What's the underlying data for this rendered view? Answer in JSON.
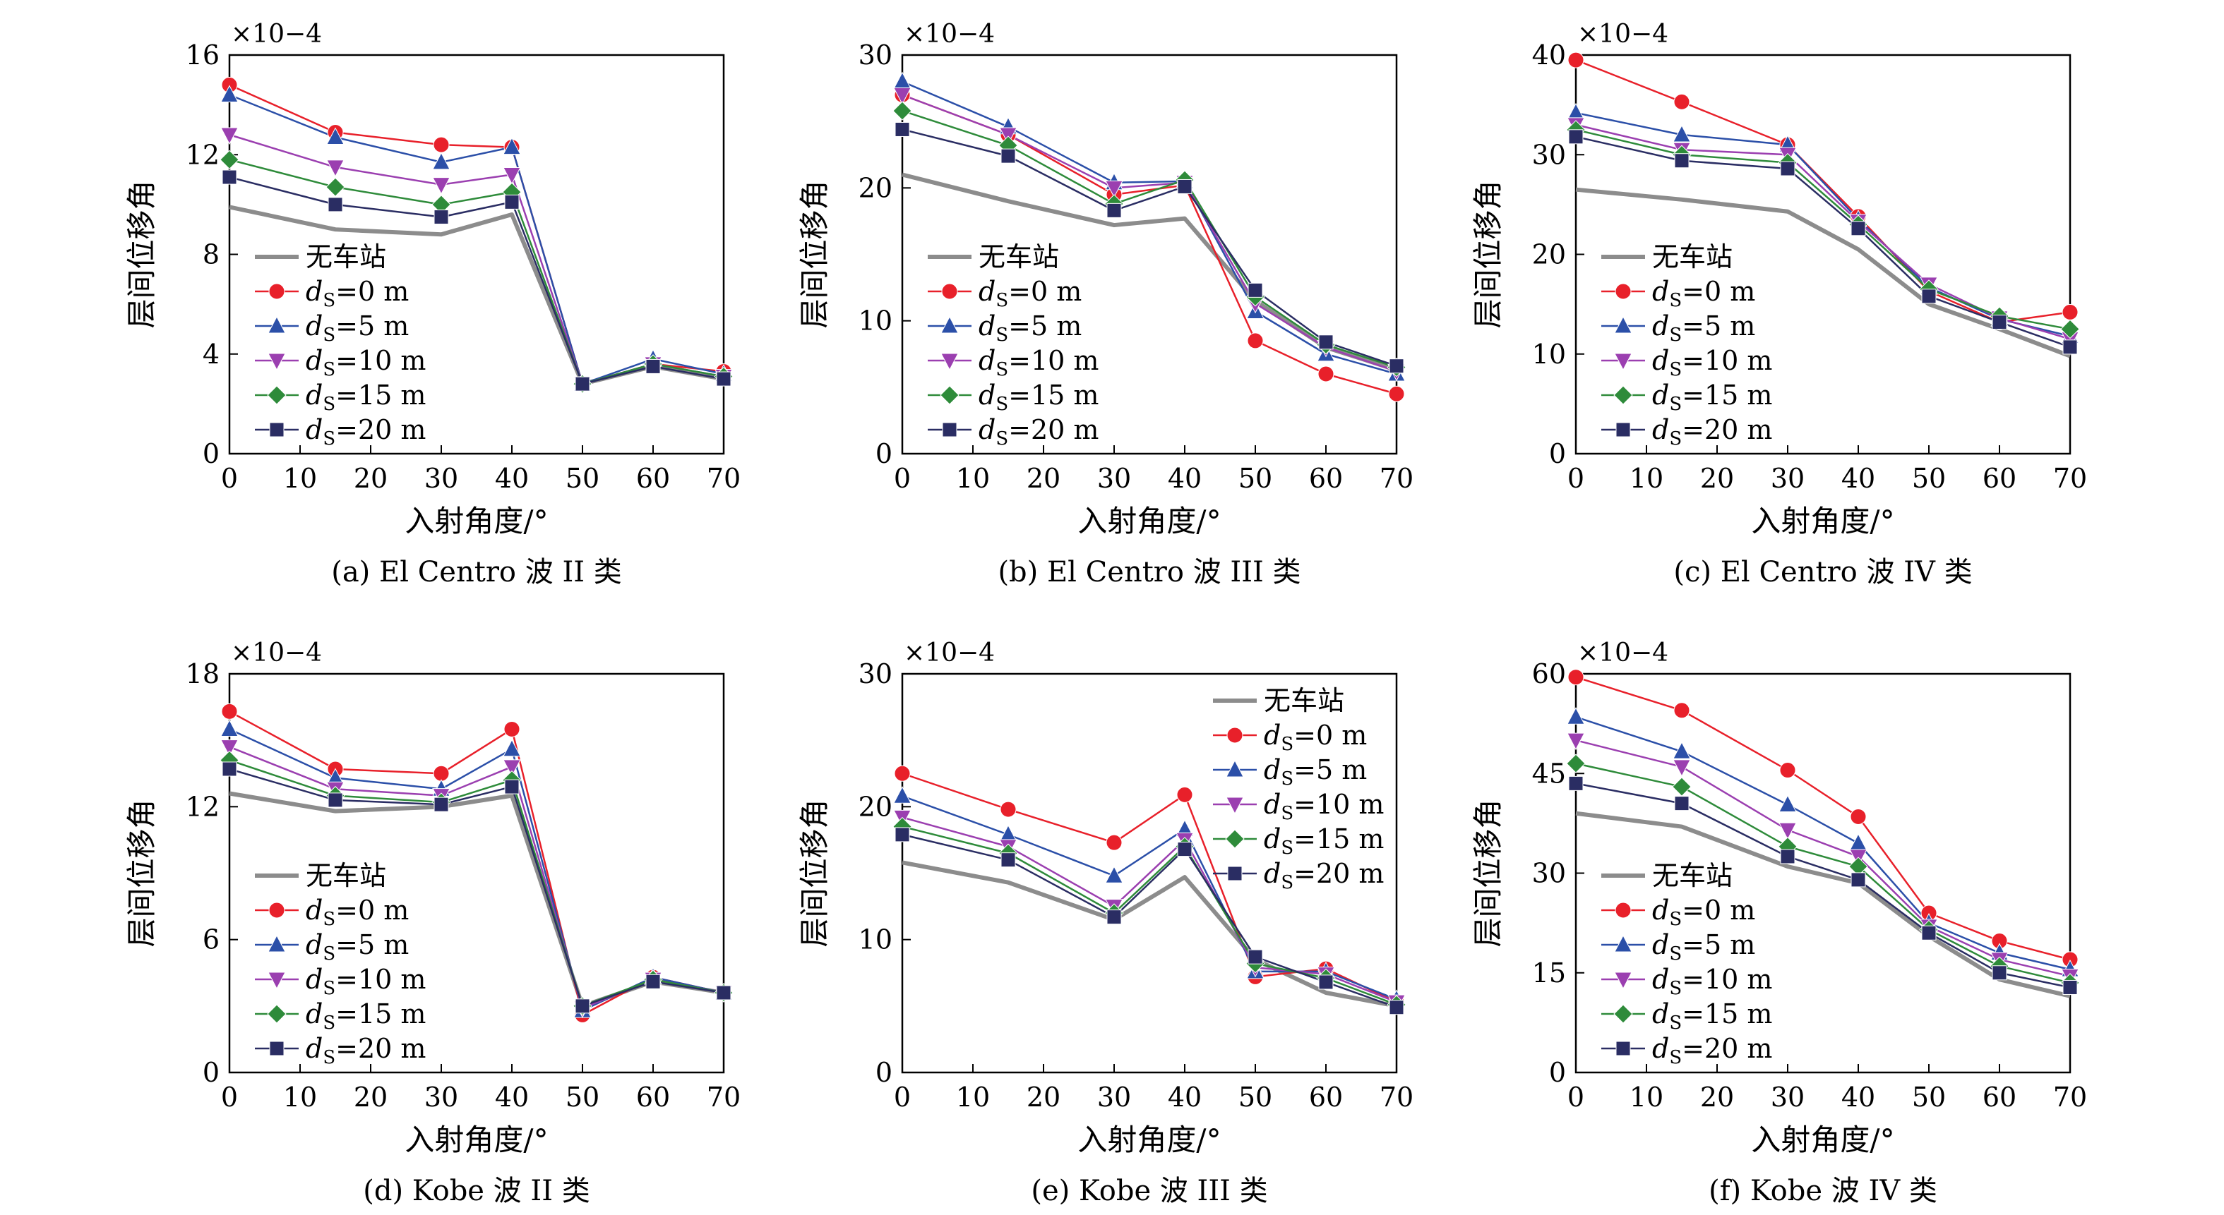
{
  "figure": {
    "legend_labels": [
      "无车站",
      "ds=0 m",
      "ds=5 m",
      "ds=10 m",
      "ds=15 m",
      "ds=20 m"
    ],
    "series_style": [
      {
        "color": "#8c8c8c",
        "marker": "none"
      },
      {
        "color": "#e8202a",
        "marker": "circle"
      },
      {
        "color": "#2b4fa8",
        "marker": "triangle-up"
      },
      {
        "color": "#9b3fb0",
        "marker": "triangle-down"
      },
      {
        "color": "#2e8b3a",
        "marker": "diamond"
      },
      {
        "color": "#2a2d63",
        "marker": "square"
      }
    ]
  },
  "chart_data": [
    {
      "type": "line",
      "caption": "(a) El Centro 波 II 类",
      "xlabel": "入射角度/°",
      "ylabel": "层间位移角",
      "exponent": "×10−4",
      "xlim": [
        0,
        70
      ],
      "ylim": [
        0,
        16
      ],
      "xticks": [
        0,
        10,
        20,
        30,
        40,
        50,
        60,
        70
      ],
      "yticks": [
        0,
        4,
        8,
        12,
        16
      ],
      "legend": "center-left",
      "x": [
        0,
        15,
        30,
        40,
        50,
        60,
        70
      ],
      "series": [
        {
          "name": "无车站",
          "values": [
            9.9,
            9.0,
            8.8,
            9.6,
            2.8,
            3.5,
            3.0
          ]
        },
        {
          "name": "ds=0 m",
          "values": [
            14.8,
            12.9,
            12.4,
            12.3,
            2.8,
            3.6,
            3.3
          ]
        },
        {
          "name": "ds=5 m",
          "values": [
            14.4,
            12.7,
            11.7,
            12.3,
            2.8,
            3.8,
            3.2
          ]
        },
        {
          "name": "ds=10 m",
          "values": [
            12.8,
            11.5,
            10.8,
            11.2,
            2.8,
            3.6,
            3.1
          ]
        },
        {
          "name": "ds=15 m",
          "values": [
            11.8,
            10.7,
            10.0,
            10.5,
            2.8,
            3.6,
            3.1
          ]
        },
        {
          "name": "ds=20 m",
          "values": [
            11.1,
            10.0,
            9.5,
            10.1,
            2.8,
            3.5,
            3.0
          ]
        }
      ]
    },
    {
      "type": "line",
      "caption": "(b) El Centro 波 III 类",
      "xlabel": "入射角度/°",
      "ylabel": "层间位移角",
      "exponent": "×10−4",
      "xlim": [
        0,
        70
      ],
      "ylim": [
        0,
        30
      ],
      "xticks": [
        0,
        10,
        20,
        30,
        40,
        50,
        60,
        70
      ],
      "yticks": [
        0,
        10,
        20,
        30
      ],
      "legend": "center-left",
      "x": [
        0,
        15,
        30,
        40,
        50,
        60,
        70
      ],
      "series": [
        {
          "name": "无车站",
          "values": [
            21.0,
            19.0,
            17.2,
            17.7,
            11.5,
            8.0,
            6.3
          ]
        },
        {
          "name": "ds=0 m",
          "values": [
            27.0,
            24.0,
            19.5,
            20.2,
            8.5,
            6.0,
            4.5
          ]
        },
        {
          "name": "ds=5 m",
          "values": [
            28.0,
            24.6,
            20.4,
            20.5,
            10.7,
            7.5,
            6.0
          ]
        },
        {
          "name": "ds=10 m",
          "values": [
            27.0,
            24.0,
            20.0,
            20.4,
            11.3,
            8.0,
            6.2
          ]
        },
        {
          "name": "ds=15 m",
          "values": [
            25.8,
            23.2,
            18.8,
            20.6,
            11.8,
            8.2,
            6.5
          ]
        },
        {
          "name": "ds=20 m",
          "values": [
            24.4,
            22.4,
            18.3,
            20.1,
            12.3,
            8.4,
            6.6
          ]
        }
      ]
    },
    {
      "type": "line",
      "caption": "(c) El Centro 波 IV 类",
      "xlabel": "入射角度/°",
      "ylabel": "层间位移角",
      "exponent": "×10−4",
      "xlim": [
        0,
        70
      ],
      "ylim": [
        0,
        40
      ],
      "xticks": [
        0,
        10,
        20,
        30,
        40,
        50,
        60,
        70
      ],
      "yticks": [
        0,
        10,
        20,
        30,
        40
      ],
      "legend": "center-left",
      "x": [
        0,
        15,
        30,
        40,
        50,
        60,
        70
      ],
      "series": [
        {
          "name": "无车站",
          "values": [
            26.5,
            25.5,
            24.3,
            20.5,
            15.0,
            12.5,
            9.8
          ]
        },
        {
          "name": "ds=0 m",
          "values": [
            39.5,
            35.3,
            31.0,
            23.8,
            16.3,
            13.2,
            14.2
          ]
        },
        {
          "name": "ds=5 m",
          "values": [
            34.2,
            32.0,
            31.0,
            23.5,
            16.7,
            13.5,
            11.8
          ]
        },
        {
          "name": "ds=10 m",
          "values": [
            33.0,
            30.5,
            30.0,
            23.3,
            17.0,
            13.6,
            11.5
          ]
        },
        {
          "name": "ds=15 m",
          "values": [
            32.5,
            30.0,
            29.2,
            23.0,
            16.5,
            13.8,
            12.5
          ]
        },
        {
          "name": "ds=20 m",
          "values": [
            31.8,
            29.4,
            28.6,
            22.6,
            15.8,
            13.2,
            10.7
          ]
        }
      ]
    },
    {
      "type": "line",
      "caption": "(d) Kobe 波 II 类",
      "xlabel": "入射角度/°",
      "ylabel": "层间位移角",
      "exponent": "×10−4",
      "xlim": [
        0,
        70
      ],
      "ylim": [
        0,
        18
      ],
      "xticks": [
        0,
        10,
        20,
        30,
        40,
        50,
        60,
        70
      ],
      "yticks": [
        0,
        6,
        12,
        18
      ],
      "legend": "center-left",
      "x": [
        0,
        15,
        30,
        40,
        50,
        60,
        70
      ],
      "series": [
        {
          "name": "无车站",
          "values": [
            12.6,
            11.8,
            12.0,
            12.5,
            3.0,
            4.1,
            3.6
          ]
        },
        {
          "name": "ds=0 m",
          "values": [
            16.3,
            13.7,
            13.5,
            15.5,
            2.6,
            4.3,
            3.6
          ]
        },
        {
          "name": "ds=5 m",
          "values": [
            15.5,
            13.3,
            12.8,
            14.6,
            2.8,
            4.3,
            3.6
          ]
        },
        {
          "name": "ds=10 m",
          "values": [
            14.7,
            12.8,
            12.5,
            13.8,
            2.9,
            4.2,
            3.6
          ]
        },
        {
          "name": "ds=15 m",
          "values": [
            14.1,
            12.5,
            12.2,
            13.2,
            3.0,
            4.2,
            3.6
          ]
        },
        {
          "name": "ds=20 m",
          "values": [
            13.7,
            12.3,
            12.1,
            12.9,
            3.0,
            4.1,
            3.6
          ]
        }
      ]
    },
    {
      "type": "line",
      "caption": "(e) Kobe 波 III 类",
      "xlabel": "入射角度/°",
      "ylabel": "层间位移角",
      "exponent": "×10−4",
      "xlim": [
        0,
        70
      ],
      "ylim": [
        0,
        30
      ],
      "xticks": [
        0,
        10,
        20,
        30,
        40,
        50,
        60,
        70
      ],
      "yticks": [
        0,
        10,
        20,
        30
      ],
      "legend": "top-right",
      "x": [
        0,
        15,
        30,
        40,
        50,
        60,
        70
      ],
      "series": [
        {
          "name": "无车站",
          "values": [
            15.8,
            14.3,
            11.5,
            14.7,
            8.5,
            6.0,
            5.0
          ]
        },
        {
          "name": "ds=0 m",
          "values": [
            22.5,
            19.8,
            17.3,
            20.9,
            7.2,
            7.8,
            5.3
          ]
        },
        {
          "name": "ds=5 m",
          "values": [
            20.8,
            17.9,
            14.8,
            18.3,
            7.6,
            7.6,
            5.5
          ]
        },
        {
          "name": "ds=10 m",
          "values": [
            19.2,
            17.0,
            12.5,
            17.5,
            7.9,
            7.4,
            5.3
          ]
        },
        {
          "name": "ds=15 m",
          "values": [
            18.5,
            16.5,
            12.0,
            17.0,
            8.2,
            7.1,
            5.1
          ]
        },
        {
          "name": "ds=20 m",
          "values": [
            17.9,
            16.0,
            11.7,
            16.8,
            8.7,
            6.8,
            4.9
          ]
        }
      ]
    },
    {
      "type": "line",
      "caption": "(f) Kobe 波 IV 类",
      "xlabel": "入射角度/°",
      "ylabel": "层间位移角",
      "exponent": "×10−4",
      "xlim": [
        0,
        70
      ],
      "ylim": [
        0,
        60
      ],
      "xticks": [
        0,
        10,
        20,
        30,
        40,
        50,
        60,
        70
      ],
      "yticks": [
        0,
        15,
        30,
        45,
        60
      ],
      "legend": "center-left",
      "x": [
        0,
        15,
        30,
        40,
        50,
        60,
        70
      ],
      "series": [
        {
          "name": "无车站",
          "values": [
            39.0,
            37.0,
            31.0,
            28.5,
            20.5,
            14.0,
            11.5
          ]
        },
        {
          "name": "ds=0 m",
          "values": [
            59.5,
            54.5,
            45.5,
            38.5,
            24.0,
            19.8,
            17.0
          ]
        },
        {
          "name": "ds=5 m",
          "values": [
            53.5,
            48.3,
            40.3,
            34.5,
            22.5,
            18.0,
            15.5
          ]
        },
        {
          "name": "ds=10 m",
          "values": [
            50.0,
            46.0,
            36.5,
            32.5,
            22.0,
            17.0,
            14.5
          ]
        },
        {
          "name": "ds=15 m",
          "values": [
            46.5,
            43.0,
            34.0,
            31.0,
            21.5,
            16.0,
            13.5
          ]
        },
        {
          "name": "ds=20 m",
          "values": [
            43.5,
            40.5,
            32.5,
            29.0,
            21.0,
            15.0,
            12.8
          ]
        }
      ]
    }
  ]
}
